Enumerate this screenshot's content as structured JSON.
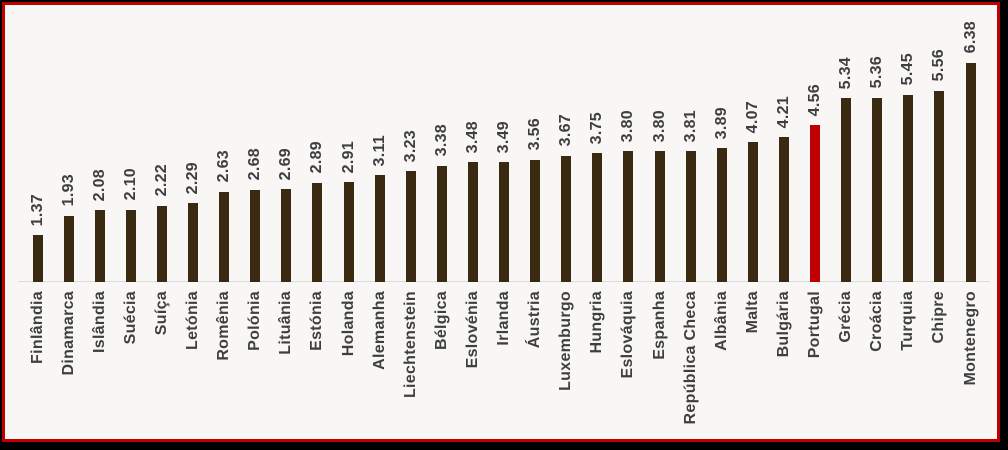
{
  "chart_data": {
    "type": "bar",
    "orientation": "vertical",
    "title": "",
    "xlabel": "",
    "ylabel": "",
    "grid": false,
    "legend": "none",
    "ylim": [
      0,
      6.38
    ],
    "value_label_format": "0.00",
    "value_label_rotation": 90,
    "category_label_rotation": 90,
    "categories": [
      "Finlândia",
      "Dinamarca",
      "Islândia",
      "Suécia",
      "Suíça",
      "Letónia",
      "Romênia",
      "Polónia",
      "Lituânia",
      "Estónia",
      "Holanda",
      "Alemanha",
      "Liechtenstein",
      "Bélgica",
      "Eslovénia",
      "Irlanda",
      "Áustria",
      "Luxemburgo",
      "Hungria",
      "Eslováquia",
      "Espanha",
      "República Checa",
      "Albânia",
      "Malta",
      "Bulgária",
      "Portugal",
      "Grécia",
      "Croácia",
      "Turquia",
      "Chipre",
      "Montenegro"
    ],
    "values": [
      1.37,
      1.93,
      2.08,
      2.1,
      2.22,
      2.29,
      2.63,
      2.68,
      2.69,
      2.89,
      2.91,
      3.11,
      3.23,
      3.38,
      3.48,
      3.49,
      3.56,
      3.67,
      3.75,
      3.8,
      3.8,
      3.81,
      3.89,
      4.07,
      4.21,
      4.56,
      5.34,
      5.36,
      5.45,
      5.56,
      6.38
    ],
    "highlight_category": "Portugal",
    "colors": {
      "bar": "#3A2A12",
      "highlight_bar": "#C00000",
      "label_text": "#3F3F3F",
      "background": "#F8F7F5",
      "frame_border": "#C00000",
      "outer_border": "#000000",
      "axis_line": "#DBDBDB"
    }
  }
}
